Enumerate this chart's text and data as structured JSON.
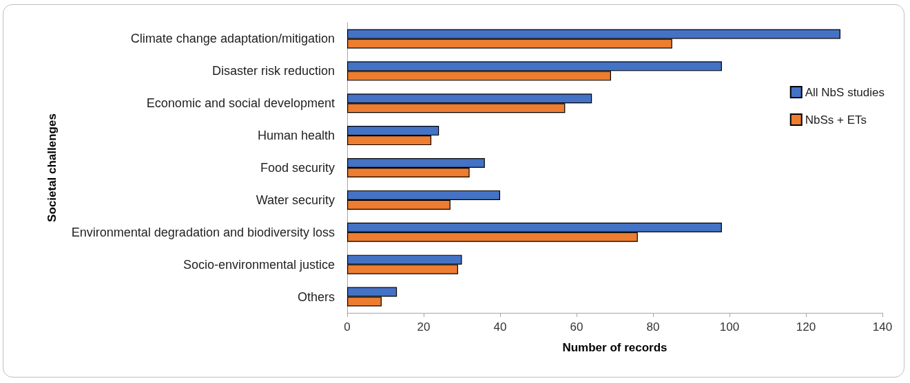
{
  "chart_data": {
    "type": "bar",
    "orientation": "horizontal",
    "xlabel": "Number of records",
    "ylabel": "Societal challenges",
    "categories": [
      "Climate change adaptation/mitigation",
      "Disaster risk reduction",
      "Economic and social development",
      "Human health",
      "Food security",
      "Water security",
      "Environmental degradation and biodiversity loss",
      "Socio-environmental justice",
      "Others"
    ],
    "series": [
      {
        "name": "All NbS studies",
        "color": "#4472c4",
        "values": [
          129,
          98,
          64,
          24,
          36,
          40,
          98,
          30,
          13
        ]
      },
      {
        "name": "NbSs + ETs",
        "color": "#ed7d31",
        "values": [
          85,
          69,
          57,
          22,
          32,
          27,
          76,
          29,
          9
        ]
      }
    ],
    "xlim": [
      0,
      140
    ],
    "xticks": [
      0,
      20,
      40,
      60,
      80,
      100,
      120,
      140
    ],
    "grid": false,
    "legend": "right"
  }
}
